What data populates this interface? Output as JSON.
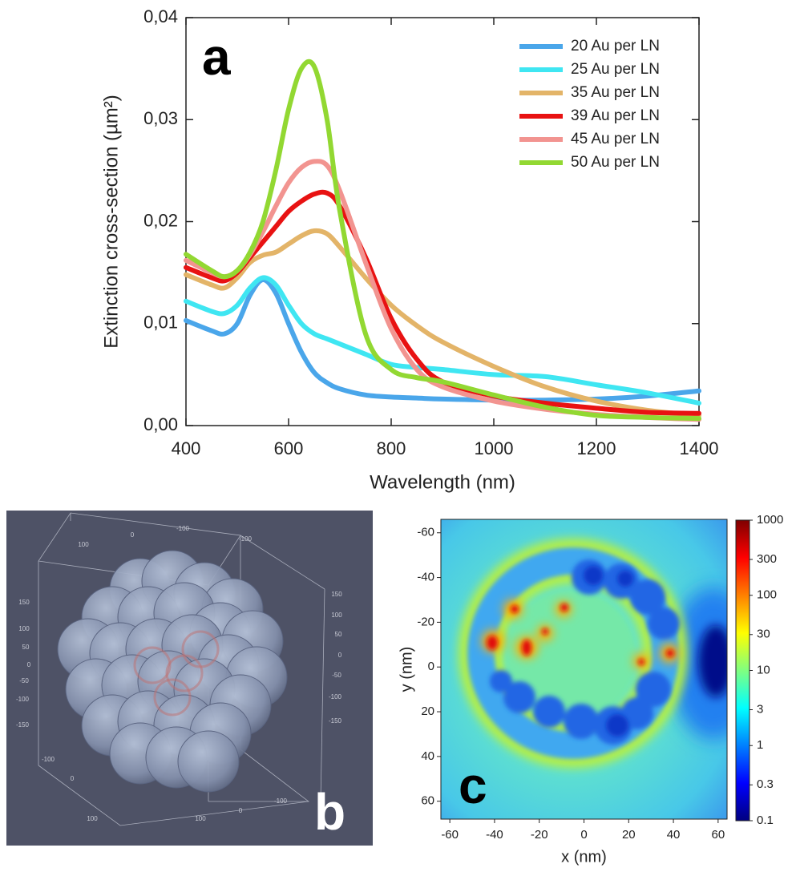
{
  "chart_data": [
    {
      "type": "line",
      "panel_label": "a",
      "x_label": "Wavelength (nm)",
      "y_label": "Extinction cross-section (µm²)",
      "x": [
        400,
        450,
        475,
        500,
        525,
        550,
        575,
        600,
        625,
        650,
        675,
        700,
        750,
        800,
        850,
        900,
        1000,
        1100,
        1200,
        1300,
        1400
      ],
      "xlim": [
        400,
        1400
      ],
      "xticks": [
        400,
        600,
        800,
        1000,
        1200,
        1400
      ],
      "ylim": [
        0,
        0.04
      ],
      "yticks": [
        {
          "value": 0,
          "label": "0,00"
        },
        {
          "value": 0.01,
          "label": "0,01"
        },
        {
          "value": 0.02,
          "label": "0,02"
        },
        {
          "value": 0.03,
          "label": "0,03"
        },
        {
          "value": 0.04,
          "label": "0,04"
        }
      ],
      "legend": "upper right",
      "series": [
        {
          "name": "20 Au per LN",
          "color": "#4aa6ea",
          "values": [
            0.0103,
            0.0093,
            0.009,
            0.01,
            0.0128,
            0.0143,
            0.013,
            0.01,
            0.0072,
            0.0052,
            0.0042,
            0.0036,
            0.003,
            0.0028,
            0.0027,
            0.0026,
            0.0025,
            0.0025,
            0.0026,
            0.0029,
            0.0034
          ]
        },
        {
          "name": "25 Au per LN",
          "color": "#3fe6f2",
          "values": [
            0.0122,
            0.0112,
            0.011,
            0.0118,
            0.0135,
            0.0145,
            0.0138,
            0.0118,
            0.01,
            0.009,
            0.0085,
            0.008,
            0.007,
            0.006,
            0.0057,
            0.0055,
            0.005,
            0.0048,
            0.004,
            0.0032,
            0.0022
          ]
        },
        {
          "name": "35 Au per LN",
          "color": "#e3b468",
          "values": [
            0.0148,
            0.0138,
            0.0135,
            0.0145,
            0.016,
            0.0167,
            0.017,
            0.0178,
            0.0186,
            0.0191,
            0.0188,
            0.0175,
            0.0145,
            0.0118,
            0.0098,
            0.0082,
            0.0058,
            0.0038,
            0.0024,
            0.0015,
            0.001
          ]
        },
        {
          "name": "39 Au per LN",
          "color": "#e81212",
          "values": [
            0.0155,
            0.0145,
            0.0142,
            0.015,
            0.0165,
            0.018,
            0.0195,
            0.021,
            0.022,
            0.0227,
            0.0228,
            0.0215,
            0.0165,
            0.0105,
            0.0065,
            0.0043,
            0.0029,
            0.0022,
            0.0017,
            0.0013,
            0.0012
          ]
        },
        {
          "name": "45 Au per LN",
          "color": "#f29490",
          "values": [
            0.0162,
            0.015,
            0.0146,
            0.0152,
            0.0168,
            0.019,
            0.0215,
            0.0238,
            0.0253,
            0.0259,
            0.0255,
            0.023,
            0.016,
            0.0095,
            0.0055,
            0.0038,
            0.0024,
            0.0016,
            0.0011,
            0.0008,
            0.0006
          ]
        },
        {
          "name": "50 Au per LN",
          "color": "#92d832",
          "values": [
            0.0168,
            0.0152,
            0.0146,
            0.0152,
            0.017,
            0.02,
            0.025,
            0.031,
            0.035,
            0.0352,
            0.03,
            0.021,
            0.009,
            0.0055,
            0.0047,
            0.0043,
            0.003,
            0.0018,
            0.001,
            0.0008,
            0.0007
          ]
        }
      ]
    },
    {
      "type": "heatmap",
      "panel_label": "c",
      "x_label": "x (nm)",
      "y_label": "y (nm)",
      "xlim": [
        -64,
        64
      ],
      "xticks": [
        -60,
        -40,
        -20,
        0,
        20,
        40,
        60
      ],
      "ylim": [
        -66,
        68
      ],
      "y_inverted": true,
      "yticks": [
        -60,
        -40,
        -20,
        0,
        20,
        40,
        60
      ],
      "colorbar": {
        "log": true,
        "lim": [
          0.1,
          1000
        ],
        "ticks": [
          0.1,
          0.3,
          1,
          3,
          10,
          30,
          100,
          300,
          1000
        ],
        "colors": [
          "#00007f",
          "#0000ff",
          "#0080ff",
          "#00ffff",
          "#80ff80",
          "#ffff00",
          "#ff8000",
          "#ff0000",
          "#7f0000"
        ]
      }
    }
  ],
  "panel_b": {
    "label": "b",
    "tick_labels": [
      "100",
      "0",
      "-100",
      "-100",
      "150",
      "100",
      "50",
      "0",
      "-50",
      "-100",
      "-150",
      "150",
      "100",
      "50",
      "0",
      "-50",
      "-100",
      "-150",
      "-100",
      "0",
      "100",
      "-100",
      "0",
      "100"
    ]
  }
}
